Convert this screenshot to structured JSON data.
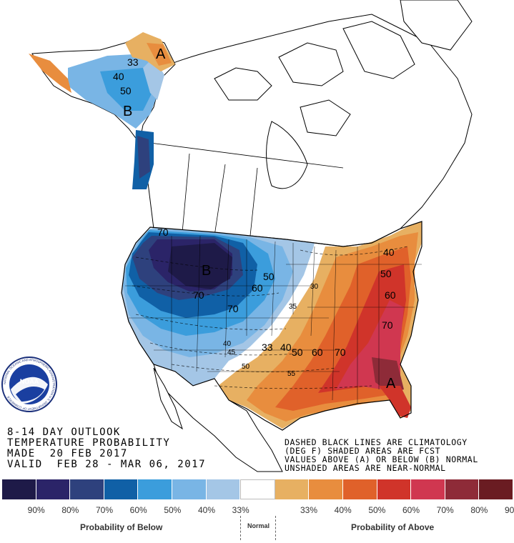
{
  "title": {
    "line1": "8-14 DAY OUTLOOK",
    "line2": "TEMPERATURE PROBABILITY",
    "line3": "MADE  20 FEB 2017",
    "line4": "VALID  FEB 28 - MAR 06, 2017"
  },
  "legend_text": {
    "line1": "DASHED BLACK LINES ARE CLIMATOLOGY",
    "line2": "(DEG F) SHADED AREAS ARE FCST",
    "line3": "VALUES ABOVE (A) OR BELOW (B) NORMAL",
    "line4": "UNSHADED AREAS ARE NEAR-NORMAL"
  },
  "logo": {
    "text": "NOAA",
    "ring_text": "NATIONAL OCEANIC AND ATMOSPHERIC ADMINISTRATION U.S. DEPARTMENT OF COMMERCE"
  },
  "map_labels": {
    "below_center": "B",
    "alaska_below": "B",
    "alaska_above": "A",
    "southeast_above": "A",
    "contours": [
      "33",
      "40",
      "50",
      "70",
      "70",
      "50",
      "60",
      "70",
      "33",
      "40",
      "50",
      "60",
      "70",
      "40",
      "50",
      "60",
      "70",
      "35",
      "40",
      "45",
      "50",
      "55",
      "30"
    ]
  },
  "colorbar": {
    "colors": [
      "#1e1a48",
      "#2b2468",
      "#2e417d",
      "#1060a6",
      "#3b9ddc",
      "#79b5e5",
      "#a4c6e6",
      "#ffffff",
      "#e7b062",
      "#e88d3e",
      "#e0612a",
      "#d0342a",
      "#d03750",
      "#8e2b38",
      "#6a1c22"
    ],
    "tick_labels": [
      "90%",
      "80%",
      "70%",
      "60%",
      "50%",
      "40%",
      "33%",
      "33%",
      "40%",
      "50%",
      "60%",
      "70%",
      "80%",
      "90%"
    ],
    "below_label": "Probability of Below",
    "normal_label": "Normal",
    "above_label": "Probability of Above"
  }
}
